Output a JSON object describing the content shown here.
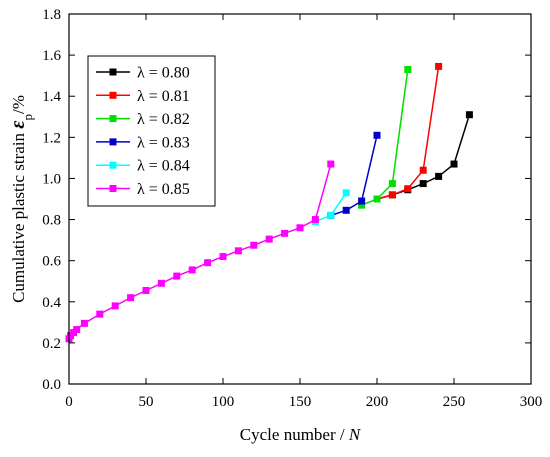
{
  "chart_data": {
    "type": "line",
    "xlabel": "Cycle number / N",
    "xlabel_prefix": "Cycle number / ",
    "xlabel_var": "N",
    "ylabel": "Cumulative plastic strain ε_p/%",
    "ylabel_prefix": "Cumulative plastic strain ",
    "ylabel_var": "ε",
    "ylabel_sub": "p",
    "ylabel_suffix": "/%",
    "xlim": [
      0,
      300
    ],
    "ylim": [
      0,
      1.8
    ],
    "xticks": [
      0,
      50,
      100,
      150,
      200,
      250,
      300
    ],
    "yticks": [
      0.0,
      0.2,
      0.4,
      0.6,
      0.8,
      1.0,
      1.2,
      1.4,
      1.6,
      1.8
    ],
    "xtick_labels": [
      "0",
      "50",
      "100",
      "150",
      "200",
      "250",
      "300"
    ],
    "ytick_labels": [
      "0.0",
      "0.2",
      "0.4",
      "0.6",
      "0.8",
      "1.0",
      "1.2",
      "1.4",
      "1.6",
      "1.8"
    ],
    "legend_position": "top-left",
    "grid": false,
    "marker": "square",
    "series": [
      {
        "name": "λ = 0.80",
        "color": "#000000",
        "x": [
          200,
          210,
          220,
          230,
          240,
          250,
          260
        ],
        "y": [
          0.9,
          0.92,
          0.945,
          0.975,
          1.01,
          1.07,
          1.31
        ]
      },
      {
        "name": "λ = 0.81",
        "color": "#ff0000",
        "x": [
          200,
          210,
          220,
          230,
          240
        ],
        "y": [
          0.9,
          0.92,
          0.95,
          1.04,
          1.545
        ]
      },
      {
        "name": "λ = 0.82",
        "color": "#00dd00",
        "x": [
          190,
          200,
          210,
          220
        ],
        "y": [
          0.87,
          0.9,
          0.975,
          1.53
        ]
      },
      {
        "name": "λ = 0.83",
        "color": "#0000cc",
        "x": [
          170,
          180,
          190,
          200
        ],
        "y": [
          0.82,
          0.845,
          0.89,
          1.21
        ]
      },
      {
        "name": "λ = 0.84",
        "color": "#00ffff",
        "x": [
          160,
          170,
          180
        ],
        "y": [
          0.79,
          0.82,
          0.93
        ]
      },
      {
        "name": "λ = 0.85",
        "color": "#ff00ff",
        "x": [
          0,
          1,
          3,
          5,
          10,
          20,
          30,
          40,
          50,
          60,
          70,
          80,
          90,
          100,
          110,
          120,
          130,
          140,
          150,
          160,
          170
        ],
        "y": [
          0.22,
          0.235,
          0.25,
          0.265,
          0.295,
          0.34,
          0.38,
          0.42,
          0.455,
          0.49,
          0.525,
          0.555,
          0.59,
          0.62,
          0.648,
          0.675,
          0.705,
          0.733,
          0.76,
          0.8,
          1.07
        ]
      }
    ]
  }
}
